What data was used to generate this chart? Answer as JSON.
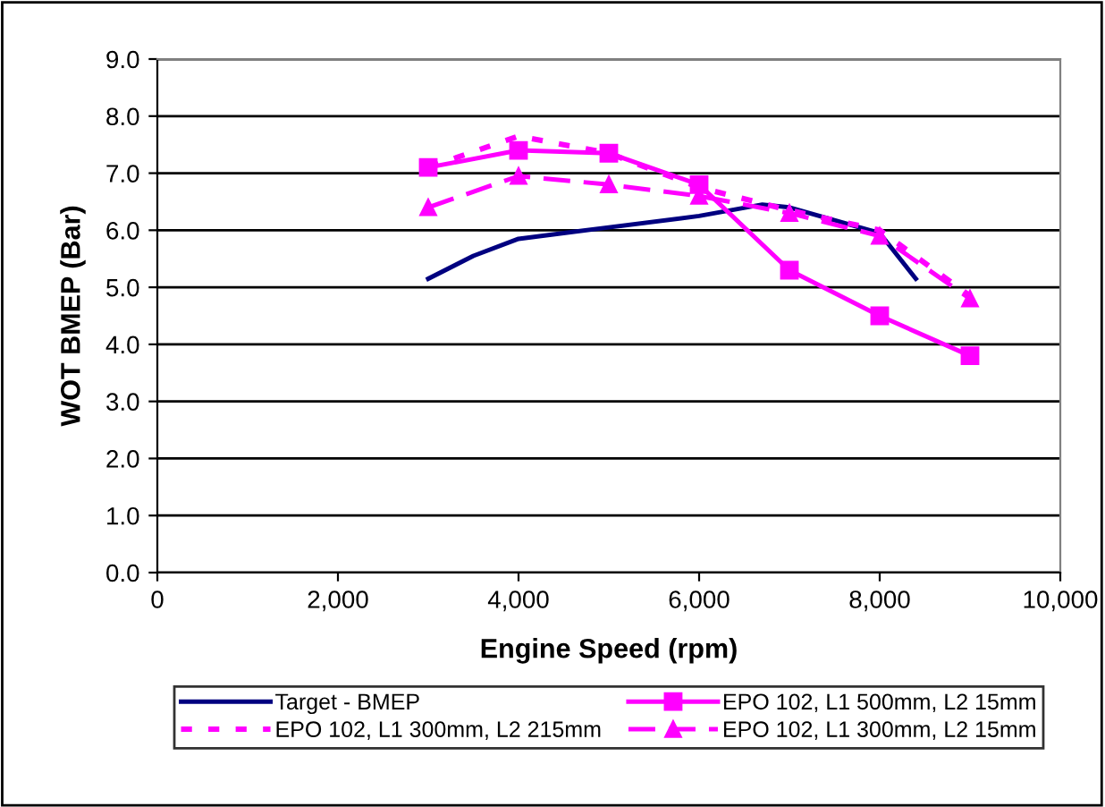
{
  "chart_data": {
    "type": "line",
    "xlabel": "Engine Speed (rpm)",
    "ylabel": "WOT BMEP (Bar)",
    "xlim": [
      0,
      10000
    ],
    "xticks": [
      {
        "value": 0,
        "label": "0"
      },
      {
        "value": 2000,
        "label": "2,000"
      },
      {
        "value": 4000,
        "label": "4,000"
      },
      {
        "value": 6000,
        "label": "6,000"
      },
      {
        "value": 8000,
        "label": "8,000"
      },
      {
        "value": 10000,
        "label": "10,000"
      }
    ],
    "ylim": [
      0,
      9
    ],
    "yticks": [
      {
        "value": 0,
        "label": "0.0"
      },
      {
        "value": 1,
        "label": "1.0"
      },
      {
        "value": 2,
        "label": "2.0"
      },
      {
        "value": 3,
        "label": "3.0"
      },
      {
        "value": 4,
        "label": "4.0"
      },
      {
        "value": 5,
        "label": "5.0"
      },
      {
        "value": 6,
        "label": "6.0"
      },
      {
        "value": 7,
        "label": "7.0"
      },
      {
        "value": 8,
        "label": "8.0"
      },
      {
        "value": 9,
        "label": "9.0"
      }
    ],
    "grid": "y",
    "legend": "bottom",
    "series": [
      {
        "name": "Target - BMEP",
        "color": "#000080",
        "marker": "none",
        "line_style": "solid",
        "x": [
          3000,
          3500,
          4000,
          5000,
          6000,
          6700,
          7000,
          8000,
          8400
        ],
        "values": [
          5.15,
          5.55,
          5.85,
          6.05,
          6.25,
          6.45,
          6.4,
          5.95,
          5.15
        ]
      },
      {
        "name": "EPO 102, L1 500mm, L2 15mm",
        "color": "#ff00ff",
        "marker": "square",
        "line_style": "solid",
        "x": [
          3000,
          4000,
          5000,
          6000,
          7000,
          8000,
          9000
        ],
        "values": [
          7.1,
          7.4,
          7.35,
          6.8,
          5.3,
          4.5,
          3.8
        ]
      },
      {
        "name": "EPO 102, L1 300mm, L2 215mm",
        "color": "#ff00ff",
        "marker": "none",
        "line_style": "dotted",
        "x": [
          3000,
          4000,
          5000,
          6000,
          7000,
          8000,
          9000
        ],
        "values": [
          7.1,
          7.65,
          7.35,
          6.75,
          6.35,
          6.0,
          4.85
        ]
      },
      {
        "name": "EPO 102, L1 300mm, L2 15mm",
        "color": "#ff00ff",
        "marker": "triangle",
        "line_style": "dashed",
        "x": [
          3000,
          4000,
          5000,
          6000,
          7000,
          8000,
          9000
        ],
        "values": [
          6.4,
          6.95,
          6.8,
          6.6,
          6.3,
          5.9,
          4.8
        ]
      }
    ]
  }
}
